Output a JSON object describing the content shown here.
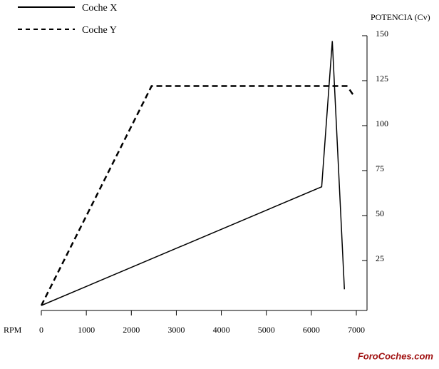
{
  "chart_data": {
    "type": "line",
    "x_label": "RPM",
    "y_label": "POTENCIA (Cv)",
    "xlim": [
      0,
      7000
    ],
    "xticks": [
      0,
      1000,
      2000,
      3000,
      4000,
      5000,
      6000,
      7000
    ],
    "ylim": [
      0,
      150
    ],
    "yticks": [
      25,
      50,
      75,
      100,
      125,
      150
    ],
    "legend": "top-left",
    "series": [
      {
        "name": "Coche X",
        "color": "#000000",
        "dash": "solid",
        "x": [
          0,
          6230,
          6466,
          6735
        ],
        "values": [
          0,
          66,
          147,
          9
        ]
      },
      {
        "name": "Coche Y",
        "color": "#000000",
        "dash": "dashed",
        "x": [
          0,
          2450,
          6820,
          null,
          6850,
          6960
        ],
        "values": [
          0,
          122,
          122,
          null,
          120,
          116
        ]
      }
    ],
    "watermark": "ForoCoches.com"
  }
}
